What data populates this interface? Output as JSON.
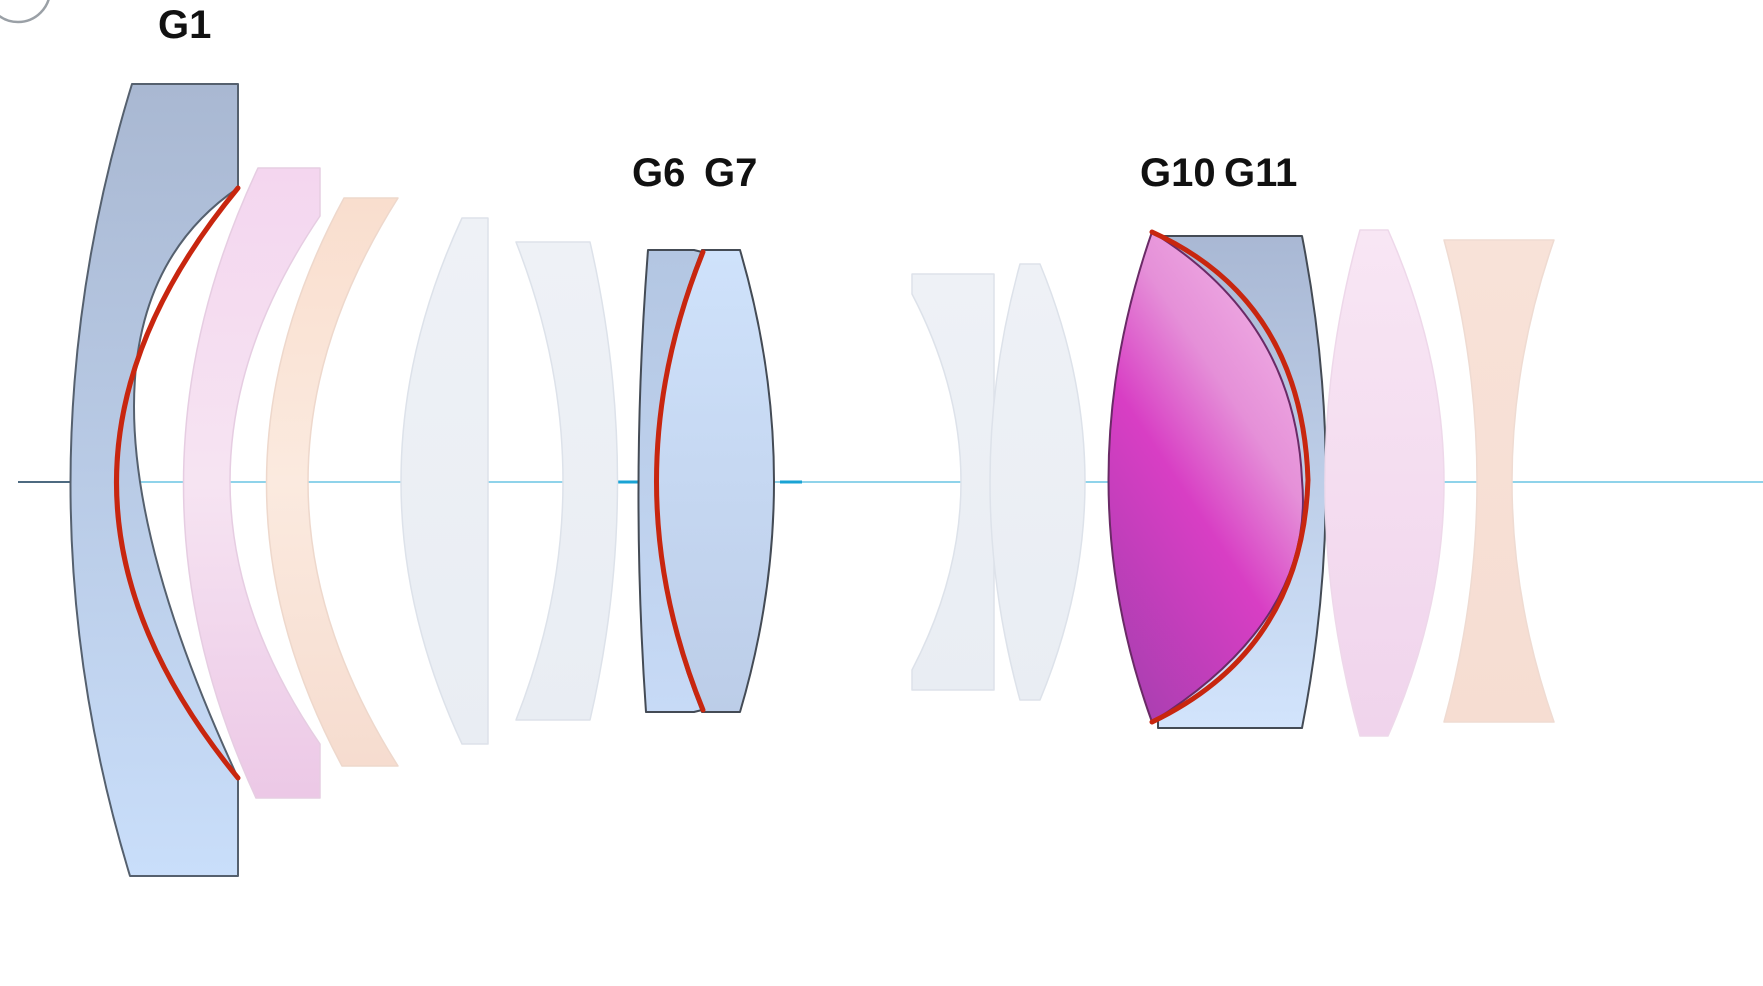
{
  "diagram": {
    "labels": {
      "g1": "G1",
      "g6": "G6",
      "g7": "G7",
      "g10": "G10",
      "g11": "G11"
    },
    "colors": {
      "blue_glass_top": "#a9b8d2",
      "blue_glass_bottom": "#c9defa",
      "pink_glass": "#f1d8ee",
      "peach_glass": "#f8e2d6",
      "clear_glass": "#edf0f5",
      "magenta_glass": "#d43bbf",
      "aspheric_surface": "#c8260f",
      "optical_axis": "#8fd3ea"
    }
  }
}
